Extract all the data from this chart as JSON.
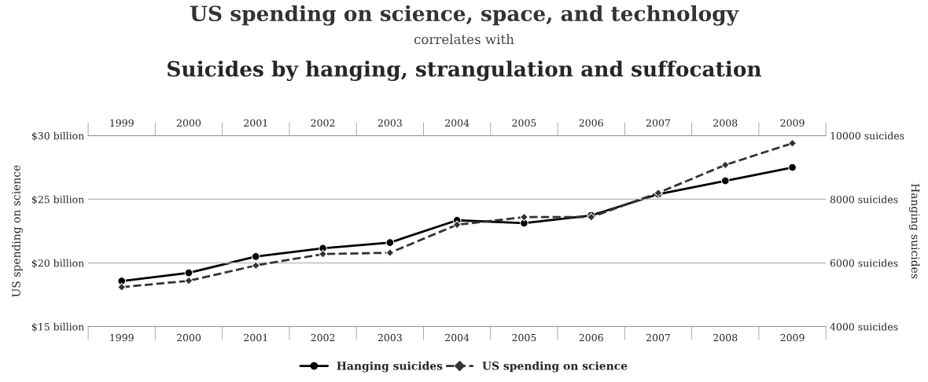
{
  "chart_data": {
    "type": "line",
    "title": "US spending on science, space, and technology",
    "subtitle": "correlates with",
    "annotations": [
      "Suicides by hanging, strangulation and suffocation"
    ],
    "x": [
      1999,
      2000,
      2001,
      2002,
      2003,
      2004,
      2005,
      2006,
      2007,
      2008,
      2009
    ],
    "xlim": [
      1998.5,
      2009.5
    ],
    "xticks": [
      1999,
      2000,
      2001,
      2002,
      2003,
      2004,
      2005,
      2006,
      2007,
      2008,
      2009
    ],
    "x2lim": [
      1998.5,
      2009.5
    ],
    "x2ticks": [
      1999,
      2000,
      2001,
      2002,
      2003,
      2004,
      2005,
      2006,
      2007,
      2008,
      2009
    ],
    "ylabel": "US spending on science",
    "y2label": "Hanging suicides",
    "ylim": [
      15,
      30
    ],
    "yticks": [
      {
        "value": 15,
        "label": "$15 billion"
      },
      {
        "value": 20,
        "label": "$20 billion"
      },
      {
        "value": 25,
        "label": "$25 billion"
      },
      {
        "value": 30,
        "label": "$30 billion"
      }
    ],
    "y2lim": [
      4000,
      10000
    ],
    "y2ticks": [
      {
        "value": 4000,
        "label": "4000 suicides"
      },
      {
        "value": 6000,
        "label": "6000 suicides"
      },
      {
        "value": 8000,
        "label": "8000 suicides"
      },
      {
        "value": 10000,
        "label": "10000 suicides"
      }
    ],
    "series": [
      {
        "name": "Hanging suicides",
        "color": "#000000",
        "axis": "y2",
        "marker": "circle",
        "line_style": "solid",
        "values": [
          5430,
          5690,
          6200,
          6460,
          6640,
          7340,
          7250,
          7490,
          8160,
          8580,
          9000
        ]
      },
      {
        "name": "US spending on science",
        "color": "#333333",
        "axis": "y",
        "marker": "diamond",
        "line_style": "dashed",
        "values": [
          18.1,
          18.6,
          19.8,
          20.7,
          20.8,
          23.0,
          23.6,
          23.6,
          25.5,
          27.7,
          29.4
        ]
      }
    ],
    "grid": "y",
    "legend": "bottom"
  }
}
